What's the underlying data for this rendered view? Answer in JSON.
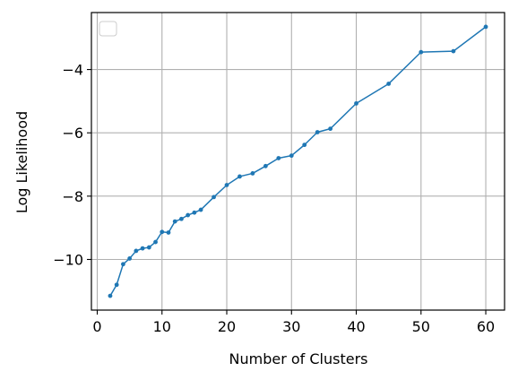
{
  "chart_data": {
    "type": "line",
    "xlabel": "Number of Clusters",
    "ylabel": "Log Likelihood",
    "xlim": [
      -0.9,
      62.9
    ],
    "ylim": [
      -11.6,
      -2.2
    ],
    "xticks": [
      0,
      10,
      20,
      30,
      40,
      50,
      60
    ],
    "xtick_labels": [
      "0",
      "10",
      "20",
      "30",
      "40",
      "50",
      "60"
    ],
    "yticks": [
      -10,
      -8,
      -6,
      -4
    ],
    "ytick_labels": [
      "−10",
      "−8",
      "−6",
      "−4"
    ],
    "grid": true,
    "legend": "top-left (empty)",
    "series": [
      {
        "color": "#1f77b4",
        "marker": "circle",
        "x": [
          2,
          3,
          4,
          5,
          6,
          7,
          8,
          9,
          10,
          11,
          12,
          13,
          14,
          15,
          16,
          18,
          20,
          22,
          24,
          26,
          28,
          30,
          32,
          34,
          36,
          40,
          45,
          50,
          55,
          60
        ],
        "y": [
          -11.15,
          -10.8,
          -10.15,
          -9.97,
          -9.73,
          -9.65,
          -9.62,
          -9.45,
          -9.13,
          -9.15,
          -8.8,
          -8.72,
          -8.6,
          -8.52,
          -8.43,
          -8.03,
          -7.65,
          -7.38,
          -7.28,
          -7.05,
          -6.8,
          -6.72,
          -6.38,
          -5.98,
          -5.87,
          -5.07,
          -4.45,
          -3.45,
          -3.42,
          -2.65
        ]
      }
    ]
  }
}
